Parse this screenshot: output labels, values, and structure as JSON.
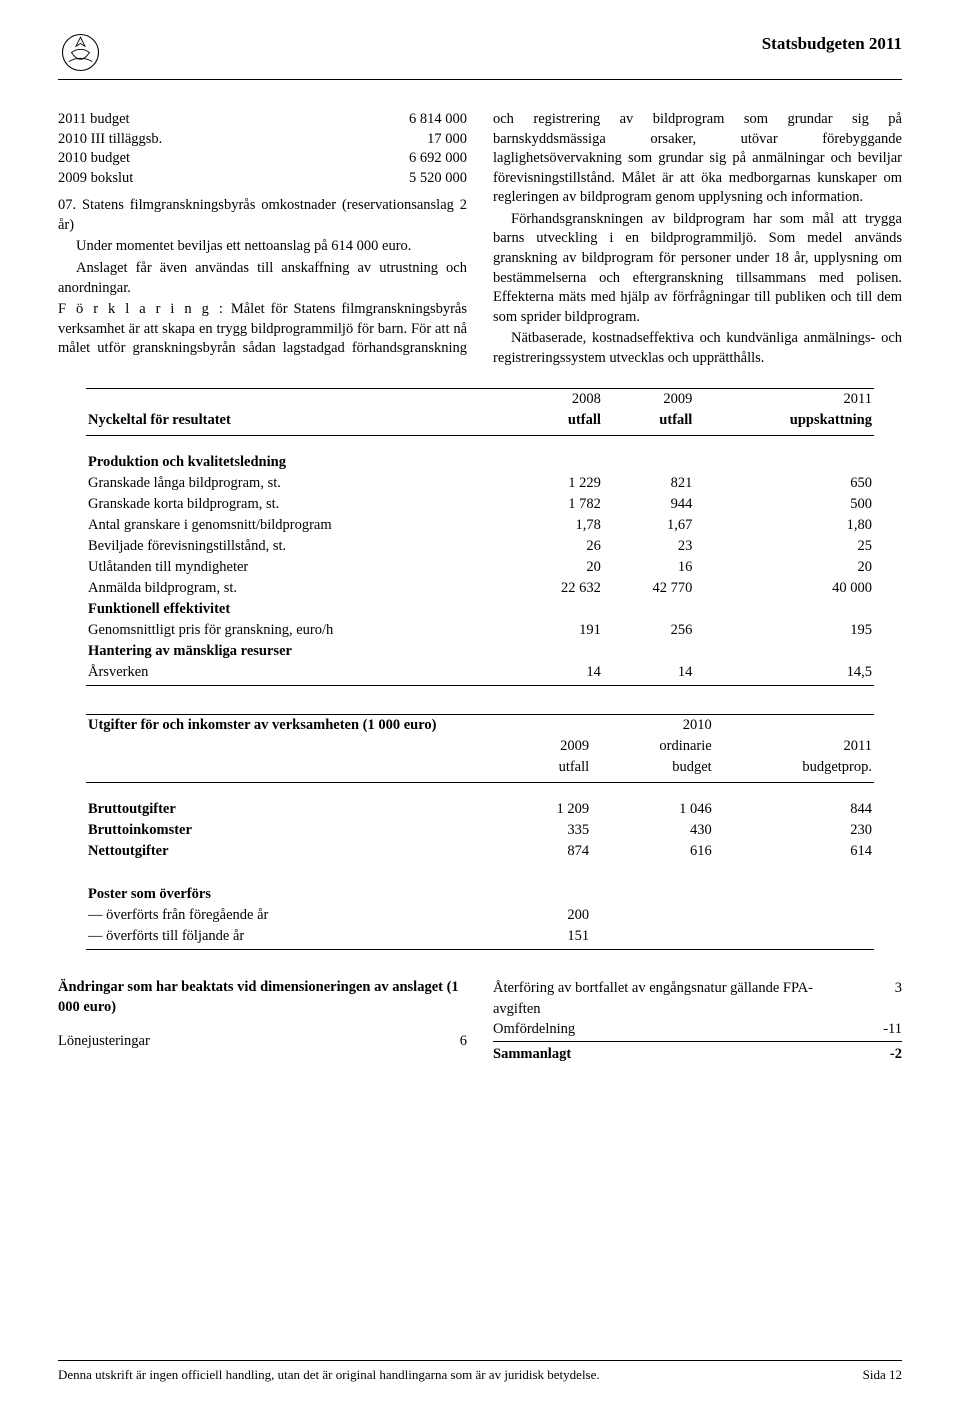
{
  "header": {
    "title": "Statsbudgeten 2011"
  },
  "budget_lines": [
    {
      "label": "2011 budget",
      "value": "6 814 000"
    },
    {
      "label": "2010 III tilläggsb.",
      "value": "17 000"
    },
    {
      "label": "2010 budget",
      "value": "6 692 000"
    },
    {
      "label": "2009 bokslut",
      "value": "5 520 000"
    }
  ],
  "section07": {
    "heading": "07. Statens filmgranskningsbyrås omkostnader (reservationsanslag 2 år)",
    "p1": "Under momentet beviljas ett nettoanslag på 614 000 euro.",
    "p2": "Anslaget får även användas till anskaffning av utrustning och anordningar.",
    "expl_label": "F ö r k l a r i n g :",
    "expl_text": "Målet för Statens filmgranskningsbyrås verksamhet är att skapa en trygg bildprogrammiljö för barn. För att nå målet utför granskningsbyrån sådan lagstadgad förhandsgranskning och registrering av bildprogram som grundar sig på barnskyddsmässiga orsaker, utövar förebyggande laglighetsövervakning som grundar sig på anmälningar och beviljar förevisningstillstånd. Målet är att öka medborgarnas kunskaper om regleringen av bildprogram genom upplysning och information.",
    "p3": "Förhandsgranskningen av bildprogram har som mål att trygga barns utveckling i en bildprogrammiljö. Som medel används granskning av bildprogram för personer under 18 år, upplysning om bestämmelserna och eftergranskning tillsammans med polisen. Effekterna mäts med hjälp av förfrågningar till publiken och till dem som sprider bildprogram.",
    "p4": "Nätbaserade, kostnadseffektiva och kundvänliga anmälnings- och registreringssystem utvecklas och upprätthålls."
  },
  "table1": {
    "caption": "Nyckeltal för resultatet",
    "col_headers_top": [
      "",
      "2008",
      "2009",
      "2011"
    ],
    "col_headers_bottom": [
      "",
      "utfall",
      "utfall",
      "uppskattning"
    ],
    "groups": [
      {
        "title": "Produktion och kvalitetsledning",
        "rows": [
          {
            "label": "Granskade långa bildprogram, st.",
            "v": [
              "1 229",
              "821",
              "650"
            ]
          },
          {
            "label": "Granskade korta bildprogram, st.",
            "v": [
              "1 782",
              "944",
              "500"
            ]
          },
          {
            "label": "Antal granskare i genomsnitt/bildprogram",
            "v": [
              "1,78",
              "1,67",
              "1,80"
            ]
          },
          {
            "label": "Beviljade förevisningstillstånd, st.",
            "v": [
              "26",
              "23",
              "25"
            ]
          },
          {
            "label": "Utlåtanden till myndigheter",
            "v": [
              "20",
              "16",
              "20"
            ]
          },
          {
            "label": "Anmälda bildprogram, st.",
            "v": [
              "22 632",
              "42 770",
              "40 000"
            ]
          }
        ]
      },
      {
        "title": "Funktionell effektivitet",
        "rows": [
          {
            "label": "Genomsnittligt pris för granskning, euro/h",
            "v": [
              "191",
              "256",
              "195"
            ]
          }
        ]
      },
      {
        "title": "Hantering av mänskliga resurser",
        "rows": [
          {
            "label": "Årsverken",
            "v": [
              "14",
              "14",
              "14,5"
            ]
          }
        ]
      }
    ]
  },
  "table2": {
    "caption": "Utgifter för och inkomster av verksamheten (1 000 euro)",
    "col_headers_top": [
      "",
      "",
      "2010",
      ""
    ],
    "col_headers_mid": [
      "",
      "2009",
      "ordinarie",
      "2011"
    ],
    "col_headers_bottom": [
      "",
      "utfall",
      "budget",
      "budgetprop."
    ],
    "rows": [
      {
        "label": "Bruttoutgifter",
        "v": [
          "1 209",
          "1 046",
          "844"
        ],
        "bold": true
      },
      {
        "label": "Bruttoinkomster",
        "v": [
          "335",
          "430",
          "230"
        ],
        "bold": true
      },
      {
        "label": "Nettoutgifter",
        "v": [
          "874",
          "616",
          "614"
        ],
        "bold": true
      }
    ],
    "post_group_title": "Poster som överförs",
    "post_rows": [
      {
        "label": "— överförts från föregående år",
        "v": [
          "200",
          "",
          ""
        ]
      },
      {
        "label": "— överförts till följande år",
        "v": [
          "151",
          "",
          ""
        ]
      }
    ]
  },
  "changes": {
    "title": "Ändringar som har beaktats vid dimensioneringen av anslaget (1 000 euro)",
    "left_rows": [
      {
        "label": "Lönejusteringar",
        "v": "6"
      }
    ],
    "right_rows": [
      {
        "label": "Återföring av bortfallet av engångsnatur gällande FPA-avgiften",
        "v": "3"
      },
      {
        "label": "Omfördelning",
        "v": "-11"
      }
    ],
    "sum": {
      "label": "Sammanlagt",
      "v": "-2"
    }
  },
  "footer": {
    "left": "Denna utskrift är ingen officiell handling, utan det är original handlingarna som är av juridisk betydelse.",
    "right": "Sida 12"
  }
}
